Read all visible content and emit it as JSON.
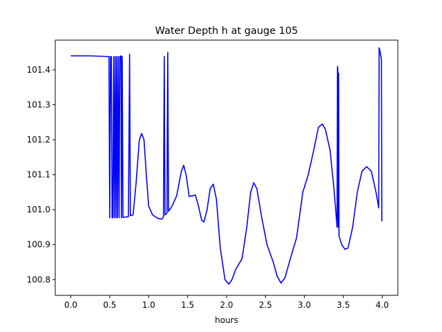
{
  "chart_data": {
    "type": "line",
    "title": "Water Depth h at gauge 105",
    "xlabel": "hours",
    "ylabel": "",
    "xlim": [
      -0.2,
      4.2
    ],
    "ylim": [
      100.755,
      101.485
    ],
    "xticks": [
      0.0,
      0.5,
      1.0,
      1.5,
      2.0,
      2.5,
      3.0,
      3.5,
      4.0
    ],
    "xtick_labels": [
      "0.0",
      "0.5",
      "1.0",
      "1.5",
      "2.0",
      "2.5",
      "3.0",
      "3.5",
      "4.0"
    ],
    "yticks": [
      100.8,
      100.9,
      101.0,
      101.1,
      101.2,
      101.3,
      101.4
    ],
    "ytick_labels": [
      "100.8",
      "100.9",
      "101.0",
      "101.1",
      "101.2",
      "101.3",
      "101.4"
    ],
    "grid": false,
    "series": [
      {
        "color": "#0000ff",
        "points": [
          [
            0.0,
            101.44
          ],
          [
            0.25,
            101.44
          ],
          [
            0.48,
            101.438
          ],
          [
            0.49,
            101.438
          ],
          [
            0.5,
            100.977
          ],
          [
            0.51,
            101.438
          ],
          [
            0.52,
            101.438
          ],
          [
            0.53,
            100.977
          ],
          [
            0.54,
            100.977
          ],
          [
            0.55,
            101.438
          ],
          [
            0.56,
            100.977
          ],
          [
            0.57,
            101.438
          ],
          [
            0.58,
            100.977
          ],
          [
            0.59,
            101.438
          ],
          [
            0.6,
            100.977
          ],
          [
            0.61,
            101.438
          ],
          [
            0.62,
            100.977
          ],
          [
            0.63,
            101.438
          ],
          [
            0.645,
            101.44
          ],
          [
            0.65,
            100.977
          ],
          [
            0.66,
            101.438
          ],
          [
            0.67,
            100.978
          ],
          [
            0.7,
            100.979
          ],
          [
            0.74,
            100.98
          ],
          [
            0.755,
            101.445
          ],
          [
            0.765,
            100.983
          ],
          [
            0.8,
            100.985
          ],
          [
            0.84,
            101.08
          ],
          [
            0.88,
            101.2
          ],
          [
            0.91,
            101.218
          ],
          [
            0.94,
            101.2
          ],
          [
            0.97,
            101.1
          ],
          [
            1.0,
            101.01
          ],
          [
            1.05,
            100.985
          ],
          [
            1.12,
            100.975
          ],
          [
            1.17,
            100.973
          ],
          [
            1.19,
            100.98
          ],
          [
            1.2,
            101.438
          ],
          [
            1.21,
            100.985
          ],
          [
            1.235,
            100.99
          ],
          [
            1.245,
            101.45
          ],
          [
            1.255,
            100.995
          ],
          [
            1.3,
            101.01
          ],
          [
            1.36,
            101.04
          ],
          [
            1.42,
            101.11
          ],
          [
            1.45,
            101.127
          ],
          [
            1.48,
            101.1
          ],
          [
            1.52,
            101.038
          ],
          [
            1.57,
            101.04
          ],
          [
            1.6,
            101.042
          ],
          [
            1.64,
            101.01
          ],
          [
            1.68,
            100.97
          ],
          [
            1.71,
            100.965
          ],
          [
            1.75,
            101.0
          ],
          [
            1.79,
            101.06
          ],
          [
            1.83,
            101.073
          ],
          [
            1.87,
            101.03
          ],
          [
            1.92,
            100.89
          ],
          [
            1.98,
            100.8
          ],
          [
            2.03,
            100.787
          ],
          [
            2.07,
            100.8
          ],
          [
            2.12,
            100.83
          ],
          [
            2.2,
            100.86
          ],
          [
            2.26,
            100.95
          ],
          [
            2.31,
            101.05
          ],
          [
            2.35,
            101.077
          ],
          [
            2.39,
            101.06
          ],
          [
            2.45,
            100.98
          ],
          [
            2.52,
            100.9
          ],
          [
            2.6,
            100.85
          ],
          [
            2.65,
            100.81
          ],
          [
            2.7,
            100.79
          ],
          [
            2.75,
            100.805
          ],
          [
            2.82,
            100.86
          ],
          [
            2.9,
            100.92
          ],
          [
            2.98,
            101.05
          ],
          [
            3.05,
            101.1
          ],
          [
            3.12,
            101.17
          ],
          [
            3.18,
            101.235
          ],
          [
            3.23,
            101.245
          ],
          [
            3.27,
            101.23
          ],
          [
            3.33,
            101.17
          ],
          [
            3.38,
            101.06
          ],
          [
            3.42,
            100.95
          ],
          [
            3.425,
            101.41
          ],
          [
            3.43,
            101.4
          ],
          [
            3.435,
            100.95
          ],
          [
            3.44,
            101.39
          ],
          [
            3.445,
            100.925
          ],
          [
            3.48,
            100.9
          ],
          [
            3.52,
            100.887
          ],
          [
            3.56,
            100.89
          ],
          [
            3.62,
            100.95
          ],
          [
            3.68,
            101.05
          ],
          [
            3.74,
            101.11
          ],
          [
            3.8,
            101.123
          ],
          [
            3.86,
            101.11
          ],
          [
            3.92,
            101.05
          ],
          [
            3.955,
            101.005
          ],
          [
            3.96,
            101.463
          ],
          [
            3.97,
            101.455
          ],
          [
            3.99,
            101.43
          ],
          [
            3.995,
            100.967
          ]
        ]
      }
    ]
  }
}
